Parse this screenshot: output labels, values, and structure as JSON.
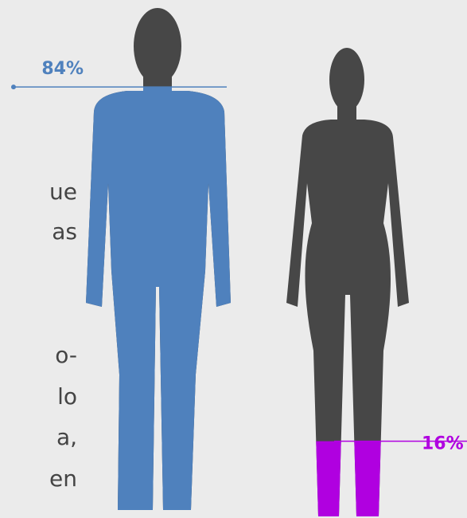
{
  "chart_data": {
    "type": "pictograph",
    "values": [
      84,
      16
    ],
    "value_labels": [
      "84%",
      "16%"
    ],
    "colors": [
      "#4f81bd",
      "#b000e0"
    ],
    "base_color": "#474747",
    "body_text": [
      "ue",
      "as",
      "o-",
      "lo",
      "a,",
      "en"
    ]
  }
}
